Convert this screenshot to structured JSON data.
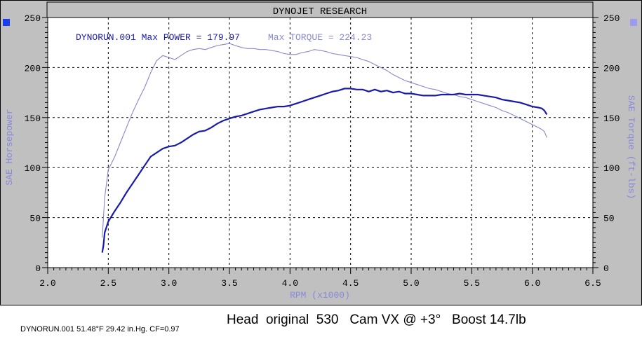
{
  "header": {
    "title": "DYNOJET RESEARCH"
  },
  "legend": {
    "power_label": "DYNORUN.001 Max POWER = 179.97",
    "torque_label": "Max TORQUE = 224.23"
  },
  "footer": {
    "caption": "Head  original  530   Cam VX @ +3°   Boost 14.7lb",
    "run_info": "DYNORUN.001 51.48°F 29.42 in.Hg. CF=0.97"
  },
  "colors": {
    "power": "#1a1aaa",
    "torque": "#8888cc",
    "axis_label": "#8888dd",
    "frame": "#c0c0c0",
    "plot_bg": "#ffffff",
    "marker_left": "#1a3cf0",
    "marker_right": "#9b9bf0"
  },
  "chart_data": {
    "type": "line",
    "title": "DYNOJET RESEARCH",
    "xlabel": "RPM (x1000)",
    "ylabel_left": "SAE Horsepower",
    "ylabel_right": "SAE Torque (ft-lbs)",
    "xlim": [
      2.0,
      6.5
    ],
    "ylim": [
      0,
      250
    ],
    "x_ticks": [
      "2.0",
      "2.5",
      "3.0",
      "3.5",
      "4.0",
      "4.5",
      "5.0",
      "5.5",
      "6.0",
      "6.5"
    ],
    "y_ticks": [
      "0",
      "50",
      "100",
      "150",
      "200",
      "250"
    ],
    "grid": true,
    "series": [
      {
        "name": "POWER",
        "max": 179.97,
        "x": [
          2.45,
          2.46,
          2.47,
          2.5,
          2.55,
          2.6,
          2.65,
          2.7,
          2.75,
          2.8,
          2.85,
          2.9,
          2.95,
          3.0,
          3.05,
          3.1,
          3.15,
          3.2,
          3.25,
          3.3,
          3.35,
          3.4,
          3.45,
          3.5,
          3.55,
          3.6,
          3.65,
          3.7,
          3.75,
          3.8,
          3.85,
          3.9,
          3.95,
          4.0,
          4.05,
          4.1,
          4.15,
          4.2,
          4.25,
          4.3,
          4.35,
          4.4,
          4.45,
          4.5,
          4.55,
          4.6,
          4.65,
          4.7,
          4.75,
          4.8,
          4.85,
          4.9,
          4.95,
          5.0,
          5.05,
          5.1,
          5.15,
          5.2,
          5.25,
          5.3,
          5.35,
          5.4,
          5.45,
          5.5,
          5.55,
          5.6,
          5.65,
          5.7,
          5.75,
          5.8,
          5.85,
          5.9,
          5.95,
          6.0,
          6.05,
          6.08,
          6.1,
          6.12
        ],
        "values": [
          15,
          22,
          35,
          46,
          56,
          65,
          75,
          84,
          93,
          102,
          111,
          115,
          119,
          121,
          122,
          125,
          129,
          133,
          136,
          137,
          140,
          144,
          147,
          149,
          151,
          152,
          154,
          156,
          158,
          159,
          160,
          161,
          161,
          162,
          164,
          166,
          168,
          170,
          172,
          174,
          176,
          177,
          179,
          179,
          178,
          178,
          176,
          178,
          176,
          177,
          175,
          176,
          174,
          174,
          173,
          172,
          172,
          172,
          173,
          173,
          173,
          174,
          173,
          173,
          173,
          172,
          171,
          170,
          168,
          167,
          166,
          165,
          163,
          161,
          160,
          159,
          157,
          153
        ]
      },
      {
        "name": "TORQUE",
        "max": 224.23,
        "x": [
          2.45,
          2.47,
          2.5,
          2.55,
          2.6,
          2.65,
          2.7,
          2.75,
          2.8,
          2.85,
          2.9,
          2.95,
          3.0,
          3.05,
          3.1,
          3.15,
          3.2,
          3.25,
          3.3,
          3.35,
          3.4,
          3.45,
          3.5,
          3.55,
          3.6,
          3.65,
          3.7,
          3.75,
          3.8,
          3.85,
          3.9,
          3.95,
          4.0,
          4.05,
          4.1,
          4.15,
          4.2,
          4.25,
          4.3,
          4.35,
          4.4,
          4.45,
          4.5,
          4.55,
          4.6,
          4.65,
          4.7,
          4.75,
          4.8,
          4.85,
          4.9,
          4.95,
          5.0,
          5.05,
          5.1,
          5.15,
          5.2,
          5.25,
          5.3,
          5.35,
          5.4,
          5.45,
          5.5,
          5.55,
          5.6,
          5.65,
          5.7,
          5.75,
          5.8,
          5.85,
          5.9,
          5.95,
          6.0,
          6.05,
          6.08,
          6.1,
          6.12
        ],
        "values": [
          30,
          70,
          98,
          110,
          125,
          140,
          155,
          168,
          180,
          195,
          207,
          212,
          210,
          208,
          212,
          216,
          218,
          219,
          218,
          220,
          222,
          223,
          224,
          222,
          220,
          219,
          219,
          218,
          218,
          217,
          216,
          214,
          213,
          213,
          215,
          216,
          218,
          217,
          216,
          214,
          213,
          212,
          211,
          210,
          208,
          206,
          203,
          200,
          197,
          193,
          190,
          187,
          185,
          183,
          181,
          179,
          178,
          176,
          174,
          173,
          171,
          170,
          168,
          166,
          164,
          162,
          160,
          157,
          155,
          152,
          149,
          146,
          143,
          140,
          138,
          136,
          130
        ]
      }
    ]
  }
}
